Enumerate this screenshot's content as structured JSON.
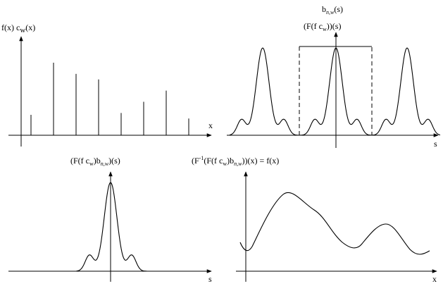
{
  "panel_tl": {
    "y_label": "f(x) c",
    "y_label_sub": "w",
    "y_label_tail": "(x)",
    "x_label": "x",
    "samples": [
      0.22,
      0.78,
      0.66,
      0.6,
      0.24,
      0.36,
      0.48,
      0.18
    ]
  },
  "panel_tr": {
    "title_line1": "b",
    "title_line1_sub": "n,w",
    "title_line1_tail": "(s)",
    "title_line2_a": "(F(f c",
    "title_line2_sub": "w",
    "title_line2_b": "))(s)",
    "x_label": "s"
  },
  "panel_bl": {
    "label_a": "(F(f c",
    "label_sub1": "w",
    "label_b": ")b",
    "label_sub2": "n,w",
    "label_c": ")(s)",
    "x_label": "s"
  },
  "panel_br": {
    "label_a": "(F",
    "label_sup": "-1",
    "label_b": "(F(f c",
    "label_sub1": "w",
    "label_c": ")b",
    "label_sub2": "n,w",
    "label_d": "))(x) = f(x)",
    "x_label": "x"
  }
}
